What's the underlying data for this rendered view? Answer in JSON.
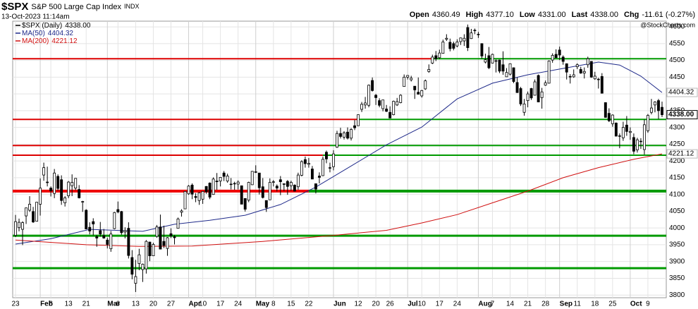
{
  "chart_data": {
    "type": "candlestick",
    "title": "$SPX",
    "subtitle": "S&P 500 Large Cap Index",
    "exchange": "INDX",
    "date": "13-Oct-2023 11:14am",
    "quote": [
      [
        "Open",
        "4360.49"
      ],
      [
        "High",
        "4377.10"
      ],
      [
        "Low",
        "4331.00"
      ],
      [
        "Last",
        "4338.00"
      ],
      [
        "Chg",
        "-11.61 (-0.27%)"
      ]
    ],
    "watermark": "@StockCharts.com",
    "price_name": "$SPX (Daily)",
    "price_label": "4338.00",
    "up_color": "#ffffff",
    "down_color": "#000000",
    "grid": true,
    "xlim": [
      -0.8,
      184.2
    ],
    "ylim": [
      3792,
      4617
    ],
    "yticks": [
      3800,
      3850,
      3900,
      3950,
      4000,
      4050,
      4100,
      4150,
      4200,
      4250,
      4300,
      4350,
      4400,
      4450,
      4500,
      4550,
      4600
    ],
    "xticks": [
      {
        "value": 0,
        "label": "23"
      },
      {
        "value": 7,
        "label": "Feb"
      },
      {
        "value": 10,
        "label": "6"
      },
      {
        "value": 15,
        "label": "13"
      },
      {
        "value": 20,
        "label": "21"
      },
      {
        "value": 26,
        "label": "Mar"
      },
      {
        "value": 29,
        "label": "6"
      },
      {
        "value": 34,
        "label": "13"
      },
      {
        "value": 39,
        "label": "20"
      },
      {
        "value": 44,
        "label": "27"
      },
      {
        "value": 49,
        "label": "Apr"
      },
      {
        "value": 53,
        "label": "10"
      },
      {
        "value": 58,
        "label": "17"
      },
      {
        "value": 63,
        "label": "24"
      },
      {
        "value": 68,
        "label": "May"
      },
      {
        "value": 73,
        "label": "8"
      },
      {
        "value": 78,
        "label": "15"
      },
      {
        "value": 83,
        "label": "22"
      },
      {
        "value": 90,
        "label": "Jun"
      },
      {
        "value": 97,
        "label": "12"
      },
      {
        "value": 102,
        "label": "20"
      },
      {
        "value": 106,
        "label": "26"
      },
      {
        "value": 111,
        "label": "Jul"
      },
      {
        "value": 115,
        "label": "10"
      },
      {
        "value": 120,
        "label": "17"
      },
      {
        "value": 125,
        "label": "24"
      },
      {
        "value": 131,
        "label": "Aug"
      },
      {
        "value": 135,
        "label": "7"
      },
      {
        "value": 140,
        "label": "14"
      },
      {
        "value": 145,
        "label": "21"
      },
      {
        "value": 150,
        "label": "28"
      },
      {
        "value": 154,
        "label": "Sep"
      },
      {
        "value": 159,
        "label": "11"
      },
      {
        "value": 164,
        "label": "18"
      },
      {
        "value": 169,
        "label": "25"
      },
      {
        "value": 174,
        "label": "Oct"
      },
      {
        "value": 179,
        "label": "9"
      }
    ],
    "candles": [
      [
        3978,
        4039,
        3973,
        4019
      ],
      [
        4001,
        4028,
        3990,
        4017
      ],
      [
        3996,
        4020,
        3949,
        4016
      ],
      [
        4036,
        4060,
        4012,
        4060
      ],
      [
        4053,
        4095,
        4048,
        4071
      ],
      [
        4049,
        4063,
        4015,
        4018
      ],
      [
        4020,
        4077,
        4020,
        4077
      ],
      [
        4071,
        4148,
        4037,
        4119
      ],
      [
        4158,
        4195,
        4141,
        4180
      ],
      [
        4137,
        4183,
        4124,
        4136
      ],
      [
        4119,
        4124,
        4094,
        4111
      ],
      [
        4103,
        4176,
        4089,
        4164
      ],
      [
        4154,
        4160,
        4111,
        4118
      ],
      [
        4144,
        4157,
        4069,
        4082
      ],
      [
        4075,
        4095,
        4064,
        4090
      ],
      [
        4096,
        4140,
        4089,
        4137
      ],
      [
        4126,
        4160,
        4095,
        4136
      ],
      [
        4119,
        4149,
        4113,
        4148
      ],
      [
        4115,
        4128,
        4088,
        4090
      ],
      [
        4077,
        4081,
        4048,
        4079
      ],
      [
        4053,
        4056,
        3996,
        3997
      ],
      [
        4002,
        4017,
        3981,
        3991
      ],
      [
        4019,
        4029,
        3978,
        4012
      ],
      [
        3974,
        3979,
        3944,
        3970
      ],
      [
        3992,
        4018,
        3974,
        3982
      ],
      [
        3977,
        3997,
        3968,
        3970
      ],
      [
        3964,
        3971,
        3939,
        3951
      ],
      [
        3938,
        3991,
        3929,
        3982
      ],
      [
        3998,
        4048,
        3996,
        4046
      ],
      [
        4055,
        4079,
        4044,
        4048
      ],
      [
        4049,
        4051,
        3980,
        3986
      ],
      [
        3988,
        4002,
        3969,
        3992
      ],
      [
        3999,
        4017,
        3909,
        3918
      ],
      [
        3912,
        3934,
        3847,
        3862
      ],
      [
        3835,
        3905,
        3809,
        3855
      ],
      [
        3894,
        3938,
        3874,
        3920
      ],
      [
        3876,
        3894,
        3839,
        3892
      ],
      [
        3878,
        3964,
        3864,
        3960
      ],
      [
        3958,
        3959,
        3901,
        3917
      ],
      [
        3917,
        3956,
        3917,
        3951
      ],
      [
        3975,
        4009,
        3971,
        4003
      ],
      [
        4003,
        4040,
        3937,
        3937
      ],
      [
        3960,
        4007,
        3940,
        3948
      ],
      [
        3939,
        3973,
        3917,
        3971
      ],
      [
        3983,
        3999,
        3970,
        3977
      ],
      [
        3974,
        3979,
        3951,
        3971
      ],
      [
        3999,
        4031,
        3999,
        4027
      ],
      [
        4047,
        4056,
        4034,
        4051
      ],
      [
        4057,
        4110,
        4057,
        4109
      ],
      [
        4102,
        4128,
        4099,
        4125
      ],
      [
        4128,
        4133,
        4086,
        4101
      ],
      [
        4094,
        4104,
        4077,
        4091
      ],
      [
        4082,
        4107,
        4069,
        4105
      ],
      [
        4086,
        4110,
        4072,
        4109
      ],
      [
        4124,
        4125,
        4102,
        4108
      ],
      [
        4134,
        4136,
        4086,
        4092
      ],
      [
        4100,
        4151,
        4099,
        4146
      ],
      [
        4140,
        4164,
        4114,
        4138
      ],
      [
        4140,
        4152,
        4124,
        4151
      ],
      [
        4164,
        4170,
        4140,
        4154
      ],
      [
        4140,
        4162,
        4135,
        4155
      ],
      [
        4131,
        4149,
        4115,
        4130
      ],
      [
        4132,
        4138,
        4114,
        4133
      ],
      [
        4131,
        4142,
        4115,
        4137
      ],
      [
        4126,
        4126,
        4071,
        4071
      ],
      [
        4088,
        4089,
        4049,
        4056
      ],
      [
        4083,
        4138,
        4077,
        4136
      ],
      [
        4129,
        4170,
        4128,
        4169
      ],
      [
        4166,
        4187,
        4164,
        4168
      ],
      [
        4164,
        4164,
        4100,
        4120
      ],
      [
        4123,
        4149,
        4088,
        4091
      ],
      [
        4082,
        4082,
        4048,
        4061
      ],
      [
        4084,
        4148,
        4084,
        4136
      ],
      [
        4136,
        4143,
        4124,
        4138
      ],
      [
        4125,
        4130,
        4109,
        4119
      ],
      [
        4144,
        4155,
        4098,
        4138
      ],
      [
        4132,
        4132,
        4110,
        4130
      ],
      [
        4139,
        4143,
        4099,
        4124
      ],
      [
        4126,
        4141,
        4111,
        4136
      ],
      [
        4128,
        4130,
        4109,
        4110
      ],
      [
        4123,
        4165,
        4114,
        4158
      ],
      [
        4157,
        4202,
        4154,
        4198
      ],
      [
        4204,
        4213,
        4180,
        4192
      ],
      [
        4190,
        4209,
        4180,
        4193
      ],
      [
        4176,
        4185,
        4146,
        4146
      ],
      [
        4132,
        4132,
        4103,
        4116
      ],
      [
        4155,
        4166,
        4133,
        4151
      ],
      [
        4156,
        4213,
        4155,
        4205
      ],
      [
        4226,
        4231,
        4193,
        4206
      ],
      [
        4180,
        4195,
        4166,
        4180
      ],
      [
        4183,
        4232,
        4172,
        4221
      ],
      [
        4241,
        4290,
        4239,
        4282
      ],
      [
        4282,
        4299,
        4267,
        4273
      ],
      [
        4271,
        4289,
        4264,
        4284
      ],
      [
        4286,
        4300,
        4264,
        4268
      ],
      [
        4268,
        4298,
        4261,
        4294
      ],
      [
        4305,
        4322,
        4292,
        4299
      ],
      [
        4305,
        4338,
        4305,
        4338
      ],
      [
        4354,
        4376,
        4346,
        4369
      ],
      [
        4367,
        4391,
        4356,
        4373
      ],
      [
        4366,
        4428,
        4360,
        4426
      ],
      [
        4440,
        4449,
        4407,
        4410
      ],
      [
        4396,
        4400,
        4367,
        4389
      ],
      [
        4380,
        4387,
        4360,
        4366
      ],
      [
        4356,
        4382,
        4348,
        4382
      ],
      [
        4355,
        4367,
        4346,
        4348
      ],
      [
        4345,
        4363,
        4328,
        4328
      ],
      [
        4338,
        4380,
        4336,
        4378
      ],
      [
        4367,
        4388,
        4364,
        4377
      ],
      [
        4374,
        4399,
        4372,
        4396
      ],
      [
        4422,
        4458,
        4422,
        4450
      ],
      [
        4450,
        4456,
        4443,
        4455
      ],
      [
        4442,
        4454,
        4437,
        4447
      ],
      [
        4423,
        4423,
        4385,
        4412
      ],
      [
        4405,
        4449,
        4399,
        4399
      ],
      [
        4394,
        4412,
        4389,
        4410
      ],
      [
        4415,
        4443,
        4412,
        4439
      ],
      [
        4467,
        4488,
        4463,
        4473
      ],
      [
        4492,
        4517,
        4489,
        4510
      ],
      [
        4514,
        4528,
        4498,
        4505
      ],
      [
        4508,
        4532,
        4504,
        4522
      ],
      [
        4521,
        4562,
        4520,
        4555
      ],
      [
        4563,
        4578,
        4558,
        4566
      ],
      [
        4554,
        4565,
        4527,
        4535
      ],
      [
        4550,
        4556,
        4530,
        4536
      ],
      [
        4543,
        4563,
        4539,
        4555
      ],
      [
        4556,
        4568,
        4546,
        4567
      ],
      [
        4558,
        4578,
        4543,
        4566
      ],
      [
        4598,
        4607,
        4528,
        4538
      ],
      [
        4565,
        4594,
        4564,
        4582
      ],
      [
        4590,
        4595,
        4578,
        4589
      ],
      [
        4578,
        4585,
        4567,
        4577
      ],
      [
        4550,
        4551,
        4505,
        4513
      ],
      [
        4495,
        4520,
        4491,
        4502
      ],
      [
        4514,
        4540,
        4474,
        4478
      ],
      [
        4492,
        4520,
        4491,
        4518
      ],
      [
        4498,
        4503,
        4464,
        4499
      ],
      [
        4501,
        4502,
        4462,
        4468
      ],
      [
        4487,
        4527,
        4457,
        4468
      ],
      [
        4451,
        4477,
        4451,
        4464
      ],
      [
        4459,
        4491,
        4455,
        4490
      ],
      [
        4478,
        4479,
        4432,
        4437
      ],
      [
        4434,
        4449,
        4403,
        4404
      ],
      [
        4416,
        4421,
        4364,
        4370
      ],
      [
        4345,
        4385,
        4335,
        4370
      ],
      [
        4380,
        4407,
        4360,
        4400
      ],
      [
        4416,
        4418,
        4382,
        4388
      ],
      [
        4396,
        4443,
        4396,
        4436
      ],
      [
        4455,
        4458,
        4375,
        4376
      ],
      [
        4389,
        4418,
        4356,
        4406
      ],
      [
        4426,
        4440,
        4424,
        4433
      ],
      [
        4432,
        4500,
        4431,
        4498
      ],
      [
        4501,
        4521,
        4493,
        4515
      ],
      [
        4518,
        4533,
        4507,
        4508
      ],
      [
        4531,
        4541,
        4501,
        4516
      ],
      [
        4510,
        4515,
        4487,
        4497
      ],
      [
        4490,
        4491,
        4443,
        4465
      ],
      [
        4452,
        4459,
        4431,
        4451
      ],
      [
        4451,
        4473,
        4448,
        4457
      ],
      [
        4481,
        4491,
        4474,
        4487
      ],
      [
        4473,
        4481,
        4460,
        4462
      ],
      [
        4462,
        4479,
        4446,
        4467
      ],
      [
        4487,
        4511,
        4478,
        4505
      ],
      [
        4497,
        4497,
        4448,
        4450
      ],
      [
        4445,
        4466,
        4442,
        4453
      ],
      [
        4443,
        4448,
        4416,
        4444
      ],
      [
        4452,
        4462,
        4402,
        4402
      ],
      [
        4374,
        4375,
        4329,
        4330
      ],
      [
        4342,
        4357,
        4316,
        4320
      ],
      [
        4311,
        4339,
        4302,
        4337
      ],
      [
        4313,
        4315,
        4273,
        4274
      ],
      [
        4275,
        4282,
        4238,
        4274
      ],
      [
        4269,
        4317,
        4260,
        4300
      ],
      [
        4307,
        4334,
        4275,
        4288
      ],
      [
        4285,
        4300,
        4263,
        4288
      ],
      [
        4270,
        4282,
        4220,
        4229
      ],
      [
        4233,
        4269,
        4225,
        4263
      ],
      [
        4259,
        4268,
        4236,
        4258
      ],
      [
        4234,
        4324,
        4219,
        4308
      ],
      [
        4290,
        4340,
        4284,
        4336
      ],
      [
        4345,
        4385,
        4339,
        4358
      ],
      [
        4367,
        4378,
        4345,
        4376
      ],
      [
        4380,
        4385,
        4325,
        4350
      ],
      [
        4360,
        4377,
        4331,
        4338
      ]
    ],
    "series": [
      {
        "name": "MA(50)",
        "last_label": "4404.32",
        "color": "#1f2a8a",
        "x": [
          0,
          10,
          21,
          36,
          45,
          55,
          65,
          75,
          85,
          95,
          105,
          115,
          125,
          135,
          145,
          155,
          165,
          171,
          177,
          183
        ],
        "values": [
          3952,
          3968,
          3996,
          3990,
          4011,
          4023,
          4038,
          4070,
          4122,
          4185,
          4248,
          4301,
          4385,
          4432,
          4457,
          4476,
          4495,
          4486,
          4453,
          4404.32
        ]
      },
      {
        "name": "MA(200)",
        "last_label": "4221.12",
        "color": "#d01010",
        "x": [
          0,
          20,
          35,
          50,
          70,
          90,
          105,
          115,
          125,
          135,
          145,
          155,
          165,
          175,
          183
        ],
        "values": [
          3964,
          3950,
          3945,
          3946,
          3960,
          3978,
          3993,
          4015,
          4040,
          4075,
          4110,
          4150,
          4180,
          4205,
          4221.12
        ]
      }
    ],
    "levels": [
      {
        "value": 4505,
        "color": "#dd0000",
        "from": -0.8,
        "to": 118,
        "width": 2
      },
      {
        "value": 4505,
        "color": "#009a00",
        "from": 118,
        "to": 184.2,
        "width": 2
      },
      {
        "value": 4324,
        "color": "#dd0000",
        "from": -0.8,
        "to": 97,
        "width": 2
      },
      {
        "value": 4324,
        "color": "#009a00",
        "from": 97,
        "to": 184.2,
        "width": 2
      },
      {
        "value": 4246,
        "color": "#dd0000",
        "from": -0.8,
        "to": 89,
        "width": 2
      },
      {
        "value": 4246,
        "color": "#009a00",
        "from": 89,
        "to": 184.2,
        "width": 2
      },
      {
        "value": 4217,
        "color": "#dd0000",
        "from": -0.8,
        "to": 87,
        "width": 2
      },
      {
        "value": 4217,
        "color": "#009a00",
        "from": 87,
        "to": 184.2,
        "width": 2
      },
      {
        "value": 4110,
        "color": "#ee0000",
        "from": -0.8,
        "to": 83,
        "width": 4
      },
      {
        "value": 4110,
        "color": "#009a00",
        "from": 83,
        "to": 184.2,
        "width": 4
      },
      {
        "value": 3977,
        "color": "#009a00",
        "from": -0.8,
        "to": 184.2,
        "width": 3
      },
      {
        "value": 3880,
        "color": "#009a00",
        "from": -0.8,
        "to": 184.2,
        "width": 3
      }
    ]
  }
}
